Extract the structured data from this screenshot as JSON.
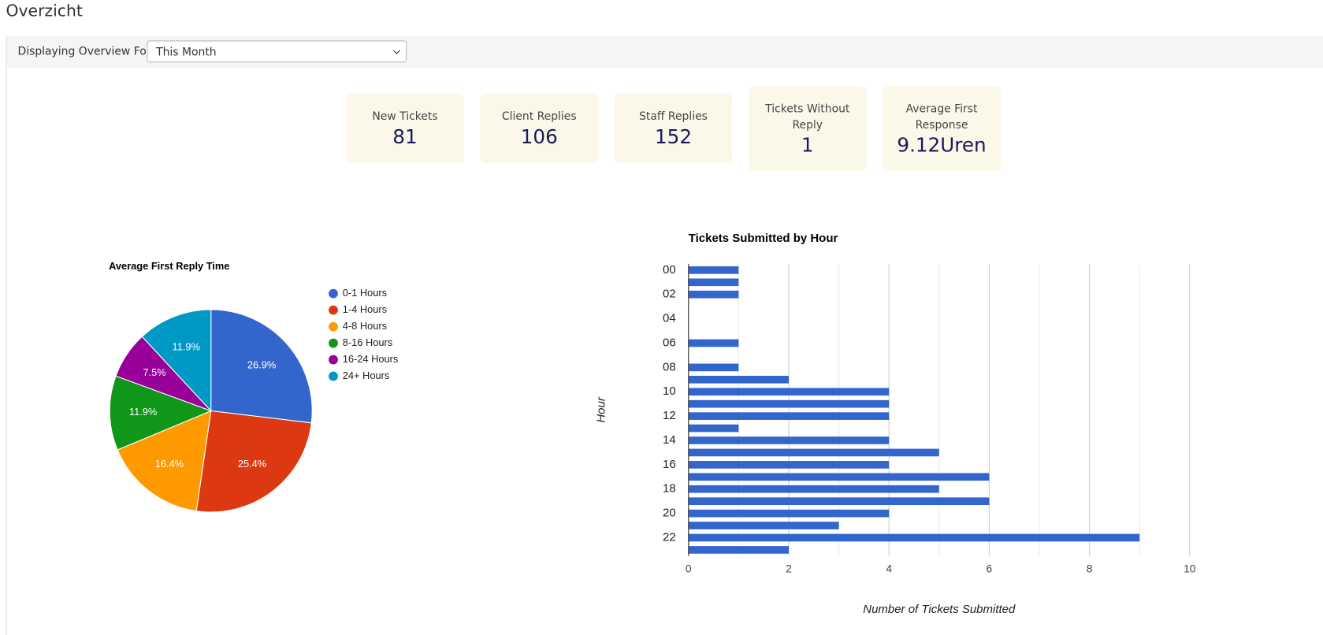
{
  "page_title": "Overzicht",
  "filter": {
    "label": "Displaying Overview For:",
    "selected": "This Month"
  },
  "stats": [
    {
      "label": "New Tickets",
      "value": "81"
    },
    {
      "label": "Client Replies",
      "value": "106"
    },
    {
      "label": "Staff Replies",
      "value": "152"
    },
    {
      "label": "Tickets Without Reply",
      "value": "1"
    },
    {
      "label": "Average First Response",
      "value": "9.12Uren"
    }
  ],
  "chart_data": [
    {
      "type": "pie",
      "title": "Average First Reply Time",
      "categories": [
        "0-1 Hours",
        "1-4 Hours",
        "4-8 Hours",
        "8-16 Hours",
        "16-24 Hours",
        "24+ Hours"
      ],
      "values": [
        26.9,
        25.4,
        16.4,
        11.9,
        7.5,
        11.9
      ],
      "value_labels": [
        "26.9%",
        "25.4%",
        "16.4%",
        "11.9%",
        "7.5%",
        "11.9%"
      ],
      "colors": [
        "#3366cc",
        "#dc3912",
        "#ff9900",
        "#109618",
        "#990099",
        "#0099c6"
      ],
      "legend": "right"
    },
    {
      "type": "bar",
      "orientation": "horizontal",
      "title": "Tickets Submitted by Hour",
      "xlabel": "Number of Tickets Submitted",
      "ylabel": "Hour",
      "categories": [
        "00",
        null,
        "02",
        null,
        "04",
        null,
        "06",
        null,
        "08",
        null,
        "10",
        null,
        "12",
        null,
        "14",
        null,
        "16",
        null,
        "18",
        null,
        "20",
        null,
        "22",
        null
      ],
      "values": [
        1,
        1,
        1,
        0,
        0,
        0,
        1,
        0,
        1,
        2,
        4,
        4,
        4,
        1,
        4,
        5,
        4,
        6,
        5,
        6,
        4,
        3,
        9,
        2
      ],
      "color": "#3366cc",
      "xlim": [
        0,
        10
      ],
      "xticks": [
        0,
        2,
        4,
        6,
        8,
        10
      ],
      "minor_xticks": [
        1,
        3,
        5,
        7,
        9
      ],
      "grid": true
    }
  ]
}
